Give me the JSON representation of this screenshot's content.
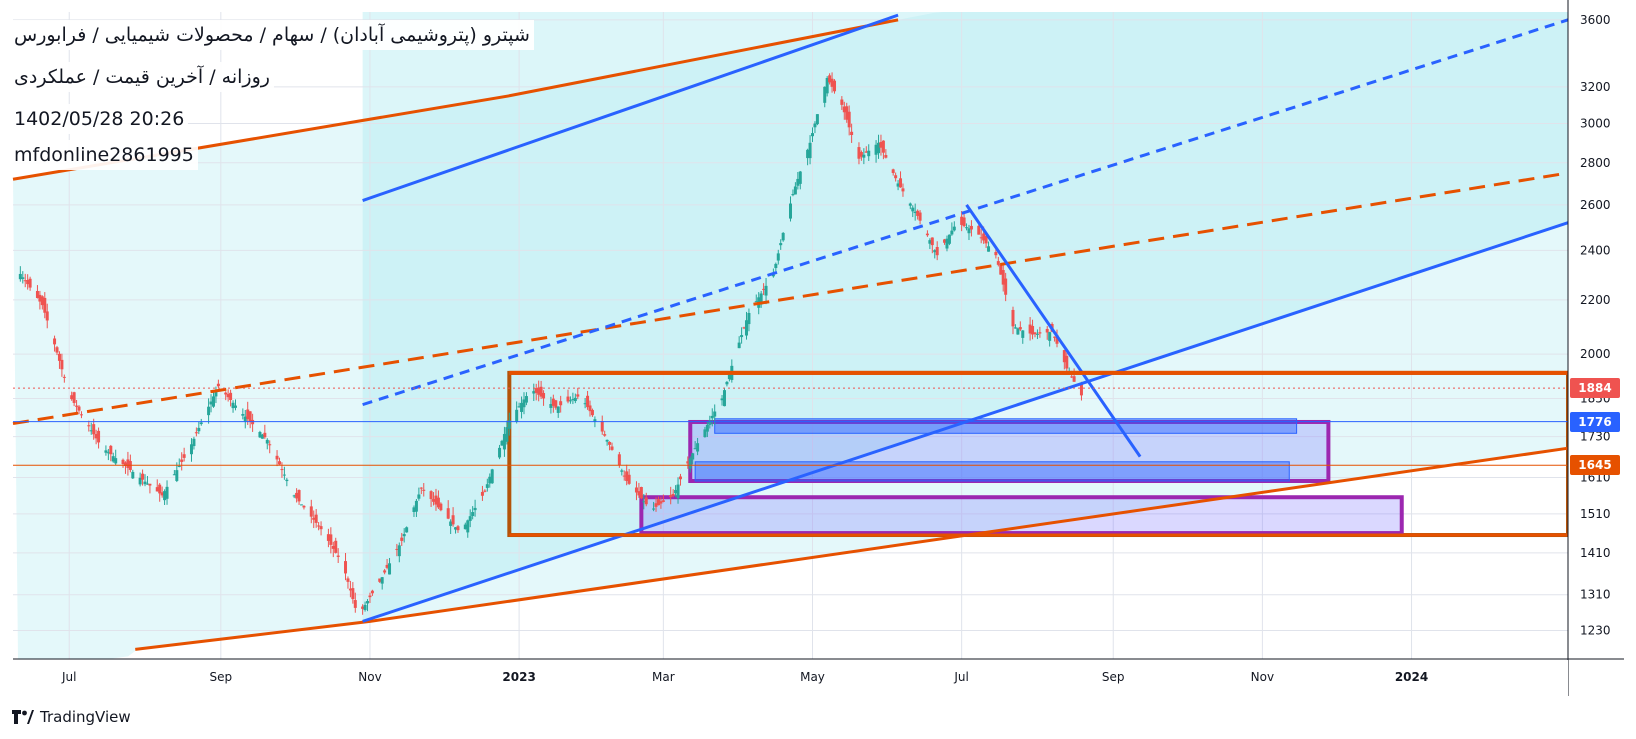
{
  "header": {
    "title": "شپترو (پتروشیمی آبادان) / سهام / محصولات شیمیایی / فرابورس",
    "subtitle": "روزانه / آخرین قیمت / عملکردی",
    "datetime": "1402/05/28 20:26",
    "user": "mfdonline2861995"
  },
  "price_tags": {
    "last": "1884",
    "level_blue": "1776",
    "level_orange": "1645"
  },
  "branding": {
    "logo_text": "TradingView",
    "logo_icon": "tradingview-logo-icon"
  },
  "colors": {
    "up": "#26a69a",
    "down": "#ef5350",
    "orange": "#e65100",
    "blue": "#2962ff",
    "purple": "#9c27b0",
    "brown": "#b45309",
    "channel_fill": "#b2ebf2"
  },
  "chart_data": {
    "type": "candlestick",
    "scale": "log",
    "ylim": [
      1170,
      3650
    ],
    "yticks": [
      1230,
      1310,
      1410,
      1510,
      1610,
      1730,
      1850,
      2000,
      2200,
      2400,
      2600,
      2800,
      3000,
      3200,
      3600
    ],
    "xticks": [
      {
        "label": "Jul",
        "date": "2022-07-01",
        "bold": false
      },
      {
        "label": "Sep",
        "date": "2022-09-01",
        "bold": false
      },
      {
        "label": "Nov",
        "date": "2022-11-01",
        "bold": false
      },
      {
        "label": "2023",
        "date": "2023-01-01",
        "bold": true
      },
      {
        "label": "Mar",
        "date": "2023-03-01",
        "bold": false
      },
      {
        "label": "May",
        "date": "2023-05-01",
        "bold": false
      },
      {
        "label": "Jul",
        "date": "2023-07-01",
        "bold": false
      },
      {
        "label": "Sep",
        "date": "2023-09-01",
        "bold": false
      },
      {
        "label": "Nov",
        "date": "2023-11-01",
        "bold": false
      },
      {
        "label": "2024",
        "date": "2024-01-01",
        "bold": true
      }
    ],
    "xlim": [
      "2022-06-08",
      "2024-03-05"
    ],
    "price_trace": [
      [
        "2022-06-09",
        2330
      ],
      [
        "2022-06-20",
        2180
      ],
      [
        "2022-07-01",
        1860
      ],
      [
        "2022-07-14",
        1700
      ],
      [
        "2022-07-28",
        1620
      ],
      [
        "2022-08-08",
        1560
      ],
      [
        "2022-08-19",
        1690
      ],
      [
        "2022-08-31",
        1890
      ],
      [
        "2022-09-10",
        1800
      ],
      [
        "2022-09-20",
        1720
      ],
      [
        "2022-10-01",
        1560
      ],
      [
        "2022-10-12",
        1470
      ],
      [
        "2022-10-21",
        1380
      ],
      [
        "2022-10-27",
        1260
      ],
      [
        "2022-11-05",
        1340
      ],
      [
        "2022-11-14",
        1440
      ],
      [
        "2022-11-22",
        1580
      ],
      [
        "2022-11-30",
        1520
      ],
      [
        "2022-12-08",
        1460
      ],
      [
        "2022-12-18",
        1570
      ],
      [
        "2022-12-28",
        1780
      ],
      [
        "2023-01-06",
        1880
      ],
      [
        "2023-01-16",
        1820
      ],
      [
        "2023-01-26",
        1860
      ],
      [
        "2023-02-06",
        1720
      ],
      [
        "2023-02-14",
        1600
      ],
      [
        "2023-02-24",
        1520
      ],
      [
        "2023-03-05",
        1560
      ],
      [
        "2023-03-15",
        1710
      ],
      [
        "2023-03-25",
        1850
      ],
      [
        "2023-04-05",
        2150
      ],
      [
        "2023-04-15",
        2300
      ],
      [
        "2023-04-23",
        2650
      ],
      [
        "2023-04-30",
        2900
      ],
      [
        "2023-05-07",
        3250
      ],
      [
        "2023-05-13",
        3100
      ],
      [
        "2023-05-20",
        2820
      ],
      [
        "2023-05-28",
        2900
      ],
      [
        "2023-06-05",
        2700
      ],
      [
        "2023-06-13",
        2550
      ],
      [
        "2023-06-21",
        2380
      ],
      [
        "2023-06-29",
        2520
      ],
      [
        "2023-07-07",
        2480
      ],
      [
        "2023-07-15",
        2380
      ],
      [
        "2023-07-22",
        2100
      ],
      [
        "2023-07-30",
        2070
      ],
      [
        "2023-08-07",
        2080
      ],
      [
        "2023-08-13",
        1950
      ],
      [
        "2023-08-19",
        1860
      ]
    ],
    "trendlines": [
      {
        "color": "orange",
        "dash": false,
        "points": [
          [
            "2022-06-08",
            2720
          ],
          [
            "2022-12-28",
            3150
          ],
          [
            "2023-06-05",
            3600
          ]
        ]
      },
      {
        "color": "orange",
        "dash": false,
        "points": [
          [
            "2022-07-28",
            1190
          ],
          [
            "2022-11-01",
            1250
          ],
          [
            "2024-03-05",
            1695
          ]
        ]
      },
      {
        "color": "orange",
        "dash": true,
        "points": [
          [
            "2022-06-08",
            1770
          ],
          [
            "2024-03-05",
            2750
          ]
        ]
      },
      {
        "color": "blue",
        "dash": false,
        "points": [
          [
            "2022-10-29",
            2620
          ],
          [
            "2023-06-05",
            3630
          ]
        ]
      },
      {
        "color": "blue",
        "dash": true,
        "points": [
          [
            "2022-10-29",
            1830
          ],
          [
            "2024-03-05",
            3600
          ]
        ]
      },
      {
        "color": "blue",
        "dash": false,
        "points": [
          [
            "2022-10-29",
            1250
          ],
          [
            "2024-03-05",
            2520
          ]
        ]
      },
      {
        "color": "blue",
        "dash": false,
        "points": [
          [
            "2023-07-03",
            2600
          ],
          [
            "2023-09-12",
            1670
          ]
        ]
      }
    ],
    "zones": [
      {
        "color": "brown",
        "from": "2022-12-28",
        "to": "2024-03-05",
        "low": 1455,
        "high": 1935
      },
      {
        "color": "purple",
        "from": "2023-03-12",
        "to": "2023-11-28",
        "low": 1600,
        "high": 1775
      },
      {
        "color": "purple",
        "from": "2023-02-20",
        "to": "2023-12-28",
        "low": 1460,
        "high": 1555
      },
      {
        "color": "blue",
        "from": "2023-03-22",
        "to": "2023-11-15",
        "low": 1740,
        "high": 1785
      },
      {
        "color": "blue",
        "from": "2023-03-14",
        "to": "2023-11-12",
        "low": 1600,
        "high": 1655
      }
    ],
    "levels": [
      {
        "value": 1884,
        "color": "down",
        "dotted": true
      },
      {
        "value": 1776,
        "color": "blue",
        "dotted": false
      },
      {
        "value": 1645,
        "color": "orange",
        "dotted": false
      }
    ]
  }
}
